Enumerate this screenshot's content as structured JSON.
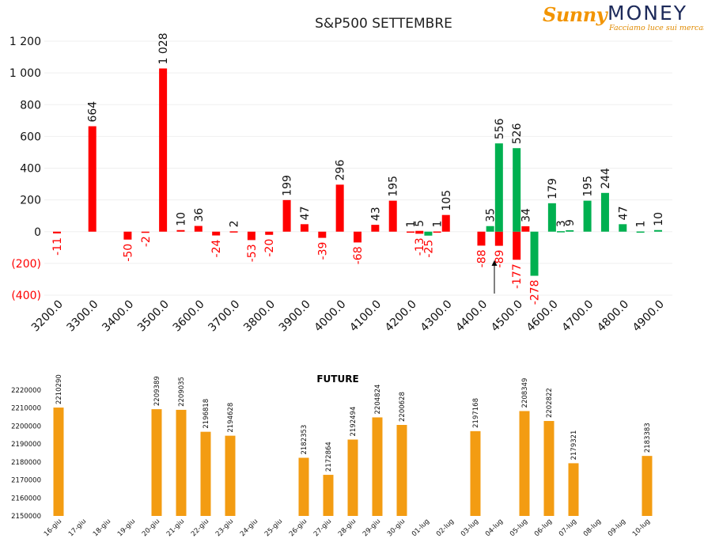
{
  "logo": {
    "brand_part1": "Sunny",
    "brand_part2": "MONEY",
    "tagline": "Facciamo luce sui mercati"
  },
  "colors": {
    "negative": "#ff0000",
    "positive": "#00b050",
    "future": "#f39c12",
    "arrow": "#000000"
  },
  "chart_data": [
    {
      "type": "bar",
      "title": "S&P500 SETTEMBRE",
      "xlabel": "",
      "ylabel": "",
      "ylim": [
        -400,
        1200
      ],
      "y_ticks": [
        "(400)",
        "(200)",
        "0",
        "200",
        "400",
        "600",
        "800",
        "1 000",
        "1 200"
      ],
      "y_tick_values": [
        -400,
        -200,
        0,
        200,
        400,
        600,
        800,
        1000,
        1200
      ],
      "x_ticks": [
        "3200.0",
        "3300.0",
        "3400.0",
        "3500.0",
        "3600.0",
        "3700.0",
        "3800.0",
        "3900.0",
        "4000.0",
        "4100.0",
        "4200.0",
        "4300.0",
        "4400.0",
        "4500.0",
        "4600.0",
        "4700.0",
        "4800.0",
        "4900.0"
      ],
      "strikes": [
        3200,
        3250,
        3300,
        3350,
        3400,
        3450,
        3500,
        3550,
        3600,
        3650,
        3700,
        3750,
        3800,
        3850,
        3900,
        3950,
        4000,
        4050,
        4100,
        4150,
        4200,
        4225,
        4250,
        4275,
        4300,
        4350,
        4400,
        4425,
        4450,
        4475,
        4500,
        4525,
        4550,
        4600,
        4625,
        4650,
        4700,
        4750,
        4800,
        4850,
        4900
      ],
      "series": [
        {
          "name": "",
          "color": "negative",
          "x": [
            3200,
            3300,
            3400,
            3450,
            3500,
            3550,
            3600,
            3650,
            3700,
            3750,
            3800,
            3850,
            3900,
            3950,
            4000,
            4050,
            4100,
            4150,
            4200,
            4225,
            4275,
            4300,
            4400,
            4450,
            4500
          ],
          "values": [
            -11,
            664,
            -50,
            -2,
            1028,
            10,
            36,
            -24,
            2,
            -53,
            -20,
            199,
            47,
            -39,
            296,
            -68,
            43,
            195,
            1,
            -13,
            1,
            105,
            -88,
            -89,
            -177
          ],
          "labels": [
            "-11",
            "664",
            "-50",
            "-2",
            "1 028",
            "10",
            "36",
            "-24",
            "2",
            "-53",
            "-20",
            "199",
            "47",
            "-39",
            "296",
            "-68",
            "43",
            "195",
            "1",
            "-13",
            "1",
            "105",
            "-88",
            "-89",
            "-177"
          ]
        },
        {
          "name": "",
          "color": "positive",
          "x": [
            4250,
            4425,
            4450,
            4500,
            4550,
            4600,
            4625,
            4650,
            4700,
            4750,
            4800,
            4850,
            4900
          ],
          "values": [
            -25,
            35,
            556,
            526,
            -278,
            179,
            3,
            9,
            195,
            244,
            47,
            1,
            10
          ],
          "labels": [
            "-25",
            "35",
            "556",
            "526",
            "-278",
            "179",
            "3",
            "9",
            "195",
            "244",
            "47",
            "1",
            "10"
          ]
        },
        {
          "name": "",
          "color": "negative",
          "x": [
            4225,
            4525
          ],
          "values": [
            5,
            34
          ],
          "labels": [
            "5",
            "34"
          ]
        }
      ],
      "annotation": {
        "type": "arrow",
        "x": 4437,
        "from_y": -390,
        "to_y": -180
      }
    },
    {
      "type": "bar",
      "title": "FUTURE",
      "xlabel": "",
      "ylabel": "",
      "ylim": [
        2150000,
        2220000
      ],
      "y_ticks": [
        "2150000",
        "2160000",
        "2170000",
        "2180000",
        "2190000",
        "2200000",
        "2210000",
        "2220000"
      ],
      "y_tick_values": [
        2150000,
        2160000,
        2170000,
        2180000,
        2190000,
        2200000,
        2210000,
        2220000
      ],
      "categories": [
        "16-giu",
        "17-giu",
        "18-giu",
        "19-giu",
        "20-giu",
        "21-giu",
        "22-giu",
        "23-giu",
        "24-giu",
        "25-giu",
        "26-giu",
        "27-giu",
        "28-giu",
        "29-giu",
        "30-giu",
        "01-lug",
        "02-lug",
        "03-lug",
        "04-lug",
        "05-lug",
        "06-lug",
        "07-lug",
        "08-lug",
        "09-lug",
        "10-lug"
      ],
      "values": [
        2210290,
        null,
        null,
        null,
        2209389,
        2209035,
        2196818,
        2194628,
        null,
        null,
        2182353,
        2172864,
        2192494,
        2204824,
        2200628,
        null,
        null,
        2197168,
        null,
        2208349,
        2202822,
        2179321,
        null,
        null,
        2183383
      ],
      "labels": [
        "2210290",
        "",
        "",
        "",
        "2209389",
        "2209035",
        "2196818",
        "2194628",
        "",
        "",
        "2182353",
        "2172864",
        "2192494",
        "2204824",
        "2200628",
        "",
        "",
        "2197168",
        "",
        "2208349",
        "2202822",
        "2179321",
        "",
        "",
        "2183383"
      ]
    }
  ]
}
